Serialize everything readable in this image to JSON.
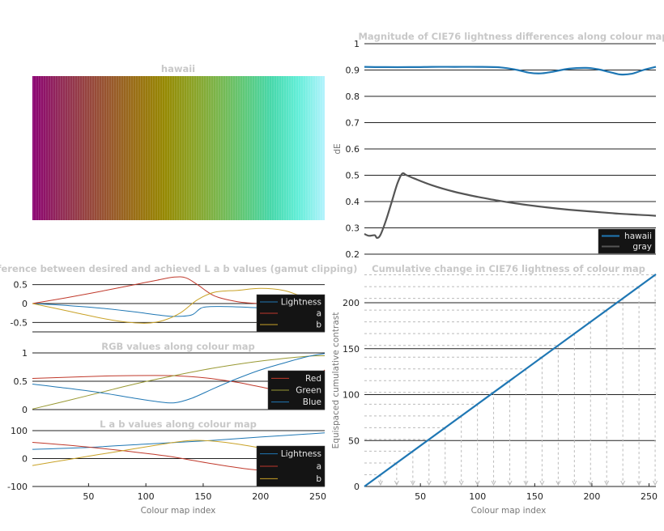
{
  "colormap": {
    "title": "hawaii",
    "stops": [
      "#8c0273",
      "#922a59",
      "#964341",
      "#985a2b",
      "#9a7213",
      "#968a03",
      "#8da225",
      "#7ab64d",
      "#5fc97a",
      "#47d8ab",
      "#63eed8",
      "#b3f2fd"
    ]
  },
  "chart_data": [
    {
      "id": "dE",
      "type": "line",
      "title": "Magnitude of CIE76 lightness differences along colour map",
      "ylabel": "dE",
      "xlim": [
        1,
        256
      ],
      "ylim": [
        0.2,
        1
      ],
      "yticks": [
        "0.2",
        "0.3",
        "0.4",
        "0.5",
        "0.6",
        "0.7",
        "0.8",
        "0.9",
        "1"
      ],
      "legend": "bottom-right",
      "series": [
        {
          "name": "hawaii",
          "color": "#1f77b4",
          "x": [
            1,
            20,
            40,
            60,
            80,
            100,
            120,
            135,
            145,
            155,
            165,
            180,
            195,
            205,
            215,
            225,
            235,
            245,
            256
          ],
          "y": [
            0.912,
            0.911,
            0.911,
            0.912,
            0.912,
            0.912,
            0.91,
            0.9,
            0.89,
            0.887,
            0.893,
            0.905,
            0.908,
            0.903,
            0.893,
            0.883,
            0.886,
            0.9,
            0.912
          ]
        },
        {
          "name": "gray",
          "color": "#555555",
          "x": [
            1,
            5,
            10,
            12,
            15,
            20,
            25,
            30,
            34,
            38,
            45,
            60,
            80,
            100,
            120,
            140,
            160,
            180,
            200,
            220,
            240,
            256
          ],
          "y": [
            0.277,
            0.27,
            0.272,
            0.262,
            0.273,
            0.33,
            0.4,
            0.47,
            0.506,
            0.5,
            0.487,
            0.462,
            0.437,
            0.418,
            0.402,
            0.389,
            0.378,
            0.369,
            0.362,
            0.355,
            0.35,
            0.346
          ]
        }
      ]
    },
    {
      "id": "diff",
      "type": "line",
      "title": "Difference between desired and achieved L a b values (gamut clipping)",
      "xlim": [
        1,
        256
      ],
      "ylim": [
        -0.75,
        0.75
      ],
      "yticks": [
        "0.5",
        "0",
        "-0.5"
      ],
      "legend": "bottom-right",
      "series": [
        {
          "name": "Lightness",
          "color": "#1f77b4",
          "x": [
            1,
            30,
            60,
            90,
            110,
            125,
            140,
            150,
            170,
            190,
            210,
            230,
            256
          ],
          "y": [
            0,
            -0.05,
            -0.12,
            -0.22,
            -0.3,
            -0.34,
            -0.3,
            -0.1,
            -0.08,
            -0.1,
            -0.12,
            -0.05,
            0
          ]
        },
        {
          "name": "a",
          "color": "#c0392b",
          "x": [
            1,
            30,
            60,
            90,
            110,
            125,
            135,
            145,
            160,
            180,
            200,
            220,
            256
          ],
          "y": [
            0,
            0.15,
            0.32,
            0.5,
            0.62,
            0.7,
            0.68,
            0.5,
            0.2,
            0.05,
            0.0,
            0.0,
            0
          ]
        },
        {
          "name": "b",
          "color": "#c9a227",
          "x": [
            1,
            20,
            40,
            60,
            80,
            100,
            115,
            130,
            145,
            160,
            180,
            200,
            220,
            235,
            256
          ],
          "y": [
            0,
            -0.12,
            -0.25,
            -0.38,
            -0.48,
            -0.52,
            -0.45,
            -0.25,
            0.1,
            0.3,
            0.35,
            0.4,
            0.35,
            0.2,
            0
          ]
        }
      ]
    },
    {
      "id": "rgb",
      "type": "line",
      "title": "RGB values along colour map",
      "xlim": [
        1,
        256
      ],
      "ylim": [
        0,
        1
      ],
      "yticks": [
        "1",
        "0.5",
        "0"
      ],
      "legend": "bottom-right",
      "series": [
        {
          "name": "Red",
          "color": "#c0392b",
          "x": [
            1,
            30,
            60,
            90,
            120,
            140,
            160,
            180,
            200,
            220,
            240,
            256
          ],
          "y": [
            0.55,
            0.57,
            0.59,
            0.6,
            0.6,
            0.58,
            0.54,
            0.48,
            0.4,
            0.33,
            0.35,
            0.7
          ]
        },
        {
          "name": "Green",
          "color": "#999933",
          "x": [
            1,
            30,
            60,
            90,
            120,
            150,
            180,
            210,
            240,
            256
          ],
          "y": [
            0.01,
            0.15,
            0.3,
            0.45,
            0.58,
            0.7,
            0.8,
            0.88,
            0.94,
            0.95
          ]
        },
        {
          "name": "Blue",
          "color": "#1f77b4",
          "x": [
            1,
            30,
            60,
            90,
            110,
            125,
            140,
            160,
            180,
            200,
            220,
            240,
            256
          ],
          "y": [
            0.45,
            0.38,
            0.3,
            0.2,
            0.14,
            0.12,
            0.2,
            0.38,
            0.55,
            0.7,
            0.82,
            0.93,
            0.99
          ]
        }
      ]
    },
    {
      "id": "lab",
      "type": "line",
      "title": "L a b values along colour map",
      "xlabel": "Colour map index",
      "xlim": [
        1,
        256
      ],
      "ylim": [
        -100,
        100
      ],
      "xticks": [
        "50",
        "100",
        "150",
        "200",
        "250"
      ],
      "yticks": [
        "100",
        "0",
        "-100"
      ],
      "legend": "bottom-right",
      "series": [
        {
          "name": "Lightness",
          "color": "#1f77b4",
          "x": [
            1,
            50,
            100,
            150,
            200,
            256
          ],
          "y": [
            33,
            40,
            52,
            63,
            77,
            92
          ]
        },
        {
          "name": "a",
          "color": "#c0392b",
          "x": [
            1,
            40,
            80,
            120,
            160,
            190,
            210,
            230,
            256
          ],
          "y": [
            58,
            45,
            28,
            8,
            -20,
            -38,
            -43,
            -38,
            -25
          ]
        },
        {
          "name": "b",
          "color": "#c9a227",
          "x": [
            1,
            30,
            60,
            90,
            120,
            140,
            160,
            180,
            210,
            240,
            256
          ],
          "y": [
            -25,
            -5,
            15,
            35,
            55,
            65,
            62,
            52,
            30,
            5,
            -15
          ]
        }
      ]
    },
    {
      "id": "cum",
      "type": "line",
      "title": "Cumulative change in CIE76 lightness of colour map",
      "xlabel": "Colour map index",
      "ylabel": "Equispaced cumulative contrast",
      "xlim": [
        1,
        256
      ],
      "ylim": [
        0,
        230
      ],
      "xticks": [
        "50",
        "100",
        "150",
        "200",
        "250"
      ],
      "yticks": [
        "0",
        "50",
        "100",
        "150",
        "200"
      ],
      "series": [
        {
          "name": "",
          "color": "#1f77b4",
          "x": [
            1,
            256
          ],
          "y": [
            0,
            231
          ]
        }
      ]
    }
  ]
}
